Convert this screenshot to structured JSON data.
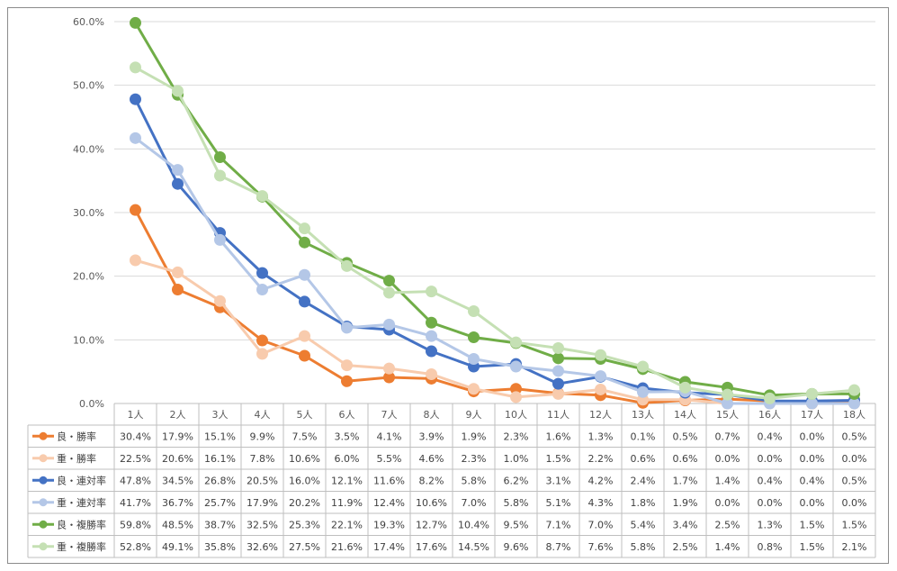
{
  "chart_data": {
    "type": "line",
    "categories": [
      "1人",
      "2人",
      "3人",
      "4人",
      "5人",
      "6人",
      "7人",
      "8人",
      "9人",
      "10人",
      "11人",
      "12人",
      "13人",
      "14人",
      "15人",
      "16人",
      "17人",
      "18人"
    ],
    "ylim": [
      0,
      60
    ],
    "yticks": [
      "0.0%",
      "10.0%",
      "20.0%",
      "30.0%",
      "40.0%",
      "50.0%",
      "60.0%"
    ],
    "grid": true,
    "legend": "data-table-left",
    "series": [
      {
        "name": "良・勝率",
        "color": "#ED7D31",
        "values": [
          30.4,
          17.9,
          15.1,
          9.9,
          7.5,
          3.5,
          4.1,
          3.9,
          1.9,
          2.3,
          1.6,
          1.3,
          0.1,
          0.5,
          0.7,
          0.4,
          0.0,
          0.5
        ],
        "labels": [
          "30.4%",
          "17.9%",
          "15.1%",
          "9.9%",
          "7.5%",
          "3.5%",
          "4.1%",
          "3.9%",
          "1.9%",
          "2.3%",
          "1.6%",
          "1.3%",
          "0.1%",
          "0.5%",
          "0.7%",
          "0.4%",
          "0.0%",
          "0.5%"
        ]
      },
      {
        "name": "重・勝率",
        "color": "#F8CBAD",
        "values": [
          22.5,
          20.6,
          16.1,
          7.8,
          10.6,
          6.0,
          5.5,
          4.6,
          2.3,
          1.0,
          1.5,
          2.2,
          0.6,
          0.6,
          0.0,
          0.0,
          0.0,
          0.0
        ],
        "labels": [
          "22.5%",
          "20.6%",
          "16.1%",
          "7.8%",
          "10.6%",
          "6.0%",
          "5.5%",
          "4.6%",
          "2.3%",
          "1.0%",
          "1.5%",
          "2.2%",
          "0.6%",
          "0.6%",
          "0.0%",
          "0.0%",
          "0.0%",
          "0.0%"
        ]
      },
      {
        "name": "良・連対率",
        "color": "#4472C4",
        "values": [
          47.8,
          34.5,
          26.8,
          20.5,
          16.0,
          12.1,
          11.6,
          8.2,
          5.8,
          6.2,
          3.1,
          4.2,
          2.4,
          1.7,
          1.4,
          0.4,
          0.4,
          0.5
        ],
        "labels": [
          "47.8%",
          "34.5%",
          "26.8%",
          "20.5%",
          "16.0%",
          "12.1%",
          "11.6%",
          "8.2%",
          "5.8%",
          "6.2%",
          "3.1%",
          "4.2%",
          "2.4%",
          "1.7%",
          "1.4%",
          "0.4%",
          "0.4%",
          "0.5%"
        ]
      },
      {
        "name": "重・連対率",
        "color": "#B4C7E7",
        "values": [
          41.7,
          36.7,
          25.7,
          17.9,
          20.2,
          11.9,
          12.4,
          10.6,
          7.0,
          5.8,
          5.1,
          4.3,
          1.8,
          1.9,
          0.0,
          0.0,
          0.0,
          0.0
        ],
        "labels": [
          "41.7%",
          "36.7%",
          "25.7%",
          "17.9%",
          "20.2%",
          "11.9%",
          "12.4%",
          "10.6%",
          "7.0%",
          "5.8%",
          "5.1%",
          "4.3%",
          "1.8%",
          "1.9%",
          "0.0%",
          "0.0%",
          "0.0%",
          "0.0%"
        ]
      },
      {
        "name": "良・複勝率",
        "color": "#70AD47",
        "values": [
          59.8,
          48.5,
          38.7,
          32.5,
          25.3,
          22.1,
          19.3,
          12.7,
          10.4,
          9.5,
          7.1,
          7.0,
          5.4,
          3.4,
          2.5,
          1.3,
          1.5,
          1.5
        ],
        "labels": [
          "59.8%",
          "48.5%",
          "38.7%",
          "32.5%",
          "25.3%",
          "22.1%",
          "19.3%",
          "12.7%",
          "10.4%",
          "9.5%",
          "7.1%",
          "7.0%",
          "5.4%",
          "3.4%",
          "2.5%",
          "1.3%",
          "1.5%",
          "1.5%"
        ]
      },
      {
        "name": "重・複勝率",
        "color": "#C5E0B4",
        "values": [
          52.8,
          49.1,
          35.8,
          32.6,
          27.5,
          21.6,
          17.4,
          17.6,
          14.5,
          9.6,
          8.7,
          7.6,
          5.8,
          2.5,
          1.4,
          0.8,
          1.5,
          2.1
        ],
        "labels": [
          "52.8%",
          "49.1%",
          "35.8%",
          "32.6%",
          "27.5%",
          "21.6%",
          "17.4%",
          "17.6%",
          "14.5%",
          "9.6%",
          "8.7%",
          "7.6%",
          "5.8%",
          "2.5%",
          "1.4%",
          "0.8%",
          "1.5%",
          "2.1%"
        ]
      }
    ]
  }
}
